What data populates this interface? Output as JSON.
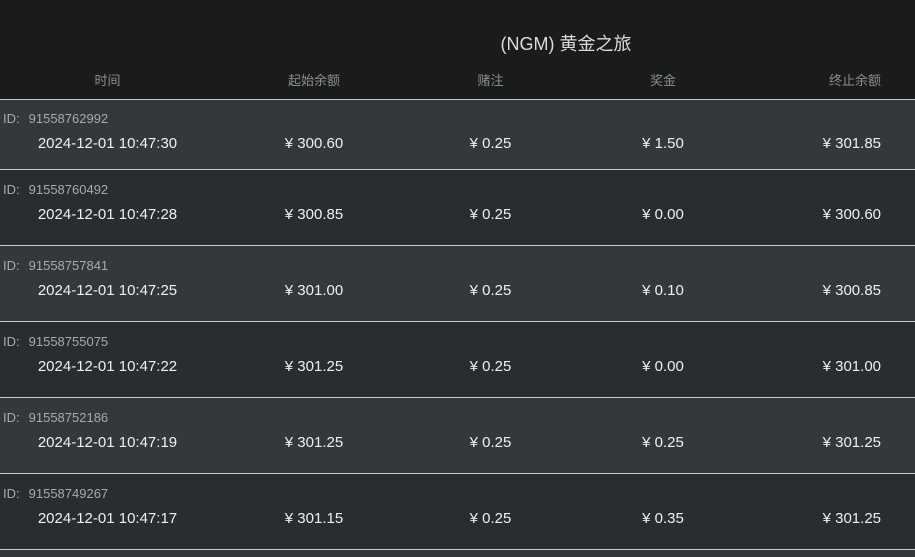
{
  "title": "(NGM) 黄金之旅",
  "id_label": "ID:",
  "columns": [
    {
      "key": "time",
      "label": "时间"
    },
    {
      "key": "start_balance",
      "label": "起始余额"
    },
    {
      "key": "bet",
      "label": "赌注"
    },
    {
      "key": "prize",
      "label": "奖金"
    },
    {
      "key": "end_balance",
      "label": "终止余额"
    }
  ],
  "currency": "¥",
  "rows": [
    {
      "id": "91558762992",
      "time": "2024-12-01 10:47:30",
      "start_balance": "¥ 300.60",
      "bet": "¥ 0.25",
      "prize": "¥ 1.50",
      "end_balance": "¥ 301.85"
    },
    {
      "id": "91558760492",
      "time": "2024-12-01 10:47:28",
      "start_balance": "¥ 300.85",
      "bet": "¥ 0.25",
      "prize": "¥ 0.00",
      "end_balance": "¥ 300.60"
    },
    {
      "id": "91558757841",
      "time": "2024-12-01 10:47:25",
      "start_balance": "¥ 301.00",
      "bet": "¥ 0.25",
      "prize": "¥ 0.10",
      "end_balance": "¥ 300.85"
    },
    {
      "id": "91558755075",
      "time": "2024-12-01 10:47:22",
      "start_balance": "¥ 301.25",
      "bet": "¥ 0.25",
      "prize": "¥ 0.00",
      "end_balance": "¥ 301.00"
    },
    {
      "id": "91558752186",
      "time": "2024-12-01 10:47:19",
      "start_balance": "¥ 301.25",
      "bet": "¥ 0.25",
      "prize": "¥ 0.25",
      "end_balance": "¥ 301.25"
    },
    {
      "id": "91558749267",
      "time": "2024-12-01 10:47:17",
      "start_balance": "¥ 301.15",
      "bet": "¥ 0.25",
      "prize": "¥ 0.35",
      "end_balance": "¥ 301.25"
    }
  ],
  "colors": {
    "header_bg": "#1a1b1c",
    "row_odd_bg": "#34383a",
    "row_even_bg": "#2a2d2f",
    "divider": "#c6c9ca",
    "title_text": "#d9dbdc",
    "header_text": "#8b8e90",
    "id_text": "#a7aaac",
    "value_text": "#eef0f0"
  }
}
